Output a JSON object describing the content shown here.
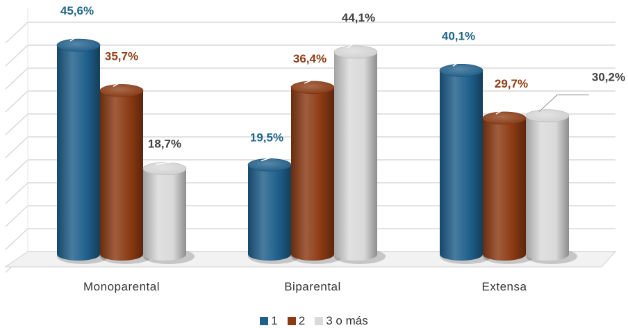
{
  "chart_data": {
    "type": "bar",
    "categories": [
      "Monoparental",
      "Biparental",
      "Extensa"
    ],
    "series": [
      {
        "name": "1",
        "values": [
          45.6,
          19.5,
          40.1
        ],
        "labels": [
          "45,6%",
          "19,5%",
          "40,1%"
        ],
        "color": "#1f5f8b",
        "label_color": "#1f6488"
      },
      {
        "name": "2",
        "values": [
          35.7,
          36.4,
          29.7
        ],
        "labels": [
          "35,7%",
          "36,4%",
          "29,7%"
        ],
        "color": "#8b3a12",
        "label_color": "#8e3d14"
      },
      {
        "name": "3 o más",
        "values": [
          18.7,
          44.1,
          30.2
        ],
        "labels": [
          "18,7%",
          "44,1%",
          "30,2%"
        ],
        "color": "#d9d9d9",
        "label_color": "#404040"
      }
    ],
    "ylim": [
      0,
      50
    ],
    "grid": true,
    "legend_position": "bottom",
    "style": "3d-cylinder"
  }
}
